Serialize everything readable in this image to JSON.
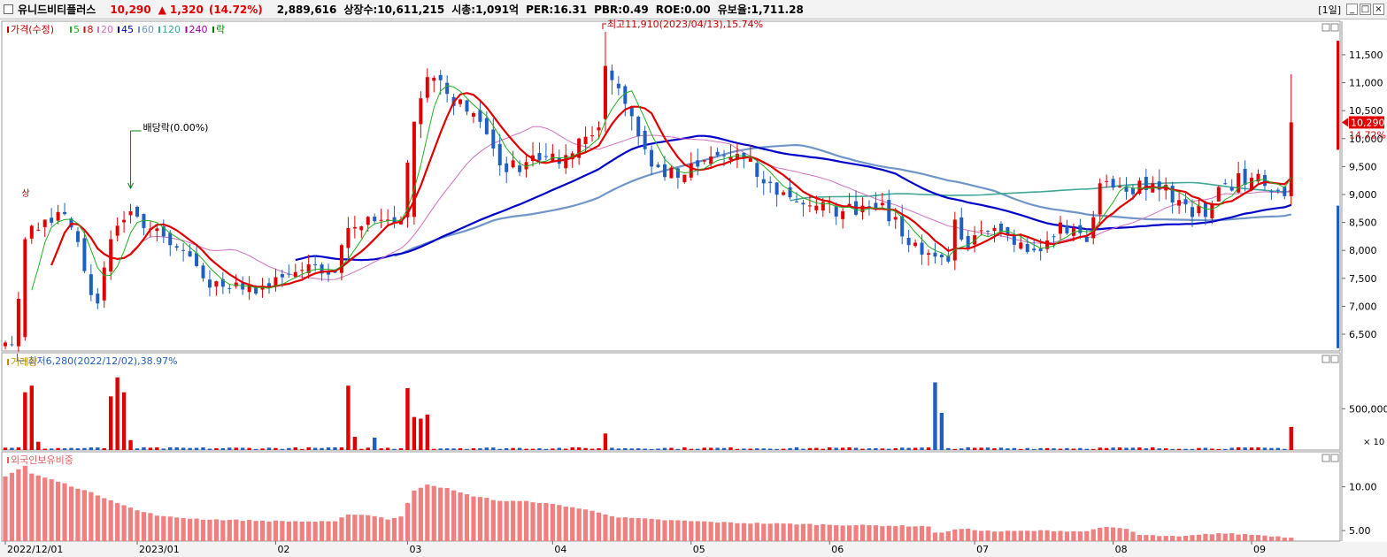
{
  "header": {
    "stock_name": "유니드비티플러스",
    "price": "10,290",
    "change_arrow": "▲",
    "change": "1,320",
    "change_pct": "(14.72%)",
    "volume": "2,889,616",
    "listed_shares": "상장수:10,611,215",
    "market_cap": "시총:1,091억",
    "per": "PER:16.31",
    "pbr": "PBR:0.49",
    "roe": "ROE:0.00",
    "float_ratio": "유보율:1,711.28",
    "period": "[1일]",
    "btn_min": "_",
    "btn_restore": "□",
    "btn_close": "×"
  },
  "colors": {
    "up": "#e00000",
    "down": "#1f5fbf",
    "ma5": "#22b022",
    "ma20": "#d070c0",
    "ma45": "#0000c8",
    "ma60": "#7095c8",
    "ma120": "#40a898",
    "foreign": "#f08080"
  },
  "chart_data": [
    {
      "type": "candlestick",
      "legend": [
        {
          "text": "가격(수정)",
          "color": "#c00000"
        },
        {
          "text": "5",
          "color": "#22b022"
        },
        {
          "text": "8",
          "color": "#e00000"
        },
        {
          "text": "20",
          "color": "#d070c0"
        },
        {
          "text": "45",
          "color": "#0000c8"
        },
        {
          "text": "60",
          "color": "#7095c8"
        },
        {
          "text": "120",
          "color": "#40a898"
        },
        {
          "text": "240",
          "color": "#a000a0"
        },
        {
          "text": "락",
          "color": "#008000"
        }
      ],
      "y_ticks": [
        "11,500",
        "11,000",
        "10,500",
        "10,000",
        "9,500",
        "9,000",
        "8,500",
        "8,000",
        "7,500",
        "7,000",
        "6,500"
      ],
      "y_tick_values": [
        11500,
        11000,
        10500,
        10000,
        9500,
        9000,
        8500,
        8000,
        7500,
        7000,
        6500
      ],
      "ylim": [
        6200,
        12100
      ],
      "x_labels": [
        "2022/12/01",
        "2023/01",
        "02",
        "03",
        "04",
        "05",
        "06",
        "07",
        "08",
        "09"
      ],
      "x_label_index": [
        0,
        20,
        41,
        61,
        83,
        104,
        125,
        147,
        168,
        189
      ],
      "annotations": {
        "high": "최고11,910(2023/04/13),15.74%",
        "high_value": 11910,
        "high_index": 91,
        "low": "최저6,280(2022/12/02),38.97%",
        "low_value": 6280,
        "low_index": 1,
        "dividend": "배당락(0.00%)",
        "dividend_index": 19,
        "upper_limit": "상",
        "upper_limit_index": 3
      },
      "current_price_label": "10,290",
      "current_change_label": "14.72%",
      "close_keypoints": [
        [
          0,
          6350
        ],
        [
          1,
          6320
        ],
        [
          3,
          8200
        ],
        [
          6,
          8550
        ],
        [
          9,
          8650
        ],
        [
          11,
          8150
        ],
        [
          13,
          7200
        ],
        [
          14,
          7050
        ],
        [
          16,
          8200
        ],
        [
          19,
          8700
        ],
        [
          21,
          8400
        ],
        [
          24,
          8250
        ],
        [
          27,
          8000
        ],
        [
          30,
          7500
        ],
        [
          33,
          7350
        ],
        [
          36,
          7300
        ],
        [
          40,
          7350
        ],
        [
          45,
          7650
        ],
        [
          50,
          7600
        ],
        [
          52,
          8400
        ],
        [
          55,
          8600
        ],
        [
          58,
          8550
        ],
        [
          60,
          8550
        ],
        [
          62,
          10300
        ],
        [
          64,
          11100
        ],
        [
          67,
          10800
        ],
        [
          69,
          10700
        ],
        [
          72,
          10300
        ],
        [
          76,
          9400
        ],
        [
          80,
          9700
        ],
        [
          84,
          9550
        ],
        [
          87,
          10000
        ],
        [
          90,
          10200
        ],
        [
          91,
          11300
        ],
        [
          93,
          10900
        ],
        [
          95,
          10400
        ],
        [
          98,
          9500
        ],
        [
          102,
          9300
        ],
        [
          105,
          9500
        ],
        [
          108,
          9700
        ],
        [
          112,
          9650
        ],
        [
          115,
          9200
        ],
        [
          119,
          8950
        ],
        [
          123,
          8800
        ],
        [
          127,
          8700
        ],
        [
          130,
          8800
        ],
        [
          133,
          8850
        ],
        [
          136,
          8250
        ],
        [
          140,
          7950
        ],
        [
          143,
          7800
        ],
        [
          144,
          8550
        ],
        [
          146,
          8050
        ],
        [
          149,
          8350
        ],
        [
          153,
          8100
        ],
        [
          156,
          8000
        ],
        [
          160,
          8500
        ],
        [
          162,
          8400
        ],
        [
          164,
          8150
        ],
        [
          166,
          9200
        ],
        [
          170,
          9050
        ],
        [
          174,
          9200
        ],
        [
          178,
          8900
        ],
        [
          182,
          8600
        ],
        [
          185,
          9200
        ],
        [
          189,
          9300
        ],
        [
          192,
          9050
        ],
        [
          194,
          8970
        ],
        [
          195,
          10290
        ]
      ],
      "volume_panel": {
        "legend": "거래량",
        "y_ticks": [
          "500,000"
        ],
        "y_tick_values": [
          500000
        ],
        "unit_label": "× 10",
        "ylim": [
          0,
          1050000
        ],
        "spikes": [
          [
            3,
            700000
          ],
          [
            4,
            780000
          ],
          [
            5,
            100000
          ],
          [
            16,
            650000
          ],
          [
            17,
            880000
          ],
          [
            18,
            700000
          ],
          [
            19,
            120000
          ],
          [
            52,
            780000
          ],
          [
            53,
            160000
          ],
          [
            56,
            150000
          ],
          [
            61,
            750000
          ],
          [
            62,
            400000
          ],
          [
            63,
            380000
          ],
          [
            64,
            430000
          ],
          [
            91,
            200000
          ],
          [
            141,
            820000
          ],
          [
            142,
            450000
          ],
          [
            195,
            280000
          ]
        ]
      },
      "foreign_panel": {
        "legend": "외국인보유비중",
        "y_ticks": [
          "10.00",
          "5.00"
        ],
        "y_tick_values": [
          10,
          5
        ],
        "ylim": [
          3.8,
          14
        ],
        "keypoints": [
          [
            0,
            11.2
          ],
          [
            3,
            12.4
          ],
          [
            4,
            11.5
          ],
          [
            8,
            10.6
          ],
          [
            12,
            9.6
          ],
          [
            16,
            8.5
          ],
          [
            20,
            7.3
          ],
          [
            24,
            6.6
          ],
          [
            30,
            6.3
          ],
          [
            40,
            6.1
          ],
          [
            50,
            6.0
          ],
          [
            52,
            6.9
          ],
          [
            56,
            6.7
          ],
          [
            58,
            6.3
          ],
          [
            60,
            6.6
          ],
          [
            62,
            9.6
          ],
          [
            64,
            10.3
          ],
          [
            67,
            9.8
          ],
          [
            70,
            9.1
          ],
          [
            75,
            8.4
          ],
          [
            80,
            8.3
          ],
          [
            85,
            7.8
          ],
          [
            90,
            7.1
          ],
          [
            93,
            6.5
          ],
          [
            100,
            6.2
          ],
          [
            110,
            5.9
          ],
          [
            130,
            5.6
          ],
          [
            140,
            5.5
          ],
          [
            141,
            4.7
          ],
          [
            145,
            5.2
          ],
          [
            150,
            4.9
          ],
          [
            158,
            5.0
          ],
          [
            164,
            4.9
          ],
          [
            166,
            5.4
          ],
          [
            170,
            5.2
          ],
          [
            172,
            4.5
          ],
          [
            178,
            4.3
          ],
          [
            184,
            4.7
          ],
          [
            190,
            4.5
          ],
          [
            195,
            4.2
          ]
        ]
      }
    }
  ]
}
